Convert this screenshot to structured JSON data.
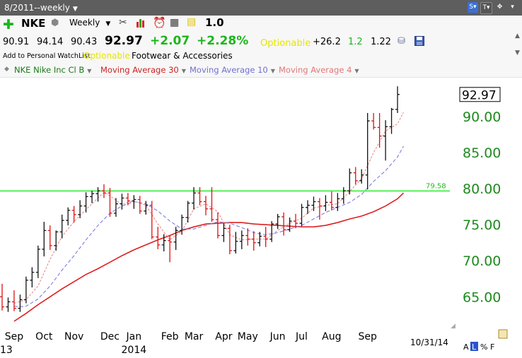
{
  "window": {
    "title": "8/2011--weekly"
  },
  "toolbar": {
    "symbol": "NKE",
    "period": "Weekly",
    "factor": "1.0",
    "open": "90.91",
    "high": "94.14",
    "low": "90.43",
    "last": "92.97",
    "change": "+2.07",
    "change_pct": "+2.28%",
    "optionable": "Optionable",
    "stat1": "+26.2",
    "stat2": "1.2",
    "stat3": "1.22",
    "watchlist_link": "Add to Personal WatchList",
    "optionable_tag": "Optionable",
    "industry": "Footwear & Accessories",
    "colors": {
      "up": "#1db51d",
      "optionable": "#e6e600"
    }
  },
  "legend": [
    {
      "label": "NKE Nike Inc Cl B",
      "color": "#1a7a1a"
    },
    {
      "label": "Moving Average 30",
      "color": "#cc2222"
    },
    {
      "label": "Moving Average 10",
      "color": "#7070d0"
    },
    {
      "label": "Moving Average 4",
      "color": "#e07878"
    }
  ],
  "chart_data": {
    "type": "ohlc",
    "price_label": "92.97",
    "ylim": [
      61.5,
      95.3
    ],
    "y_ticks": [
      "90.00",
      "85.00",
      "80.00",
      "75.00",
      "70.00",
      "65.00"
    ],
    "y_tick_values": [
      90,
      85,
      80,
      75,
      70,
      65
    ],
    "hline": {
      "value": 79.58,
      "label": "79.58",
      "color": "#33ee33"
    },
    "x_month_labels": [
      "Sep",
      "Oct",
      "Nov",
      "Dec",
      "Jan",
      "Feb",
      "Mar",
      "Apr",
      "May",
      "Jun",
      "Jul",
      "Aug",
      "Sep"
    ],
    "x_month_week_index": [
      2,
      7,
      12,
      18,
      22,
      28,
      32,
      37,
      41,
      46,
      50,
      55,
      61
    ],
    "x_year_labels": [
      {
        "text": "13",
        "week_index": 0
      },
      {
        "text": "2014",
        "week_index": 22
      }
    ],
    "date_label": "10/31/14",
    "footer_labels": [
      "A",
      "L",
      "%",
      "F"
    ],
    "bars": [
      [
        64.9,
        66.7,
        63.0,
        63.5
      ],
      [
        63.5,
        64.8,
        62.8,
        64.2
      ],
      [
        64.2,
        65.8,
        62.9,
        63.3
      ],
      [
        63.3,
        65.2,
        62.8,
        64.5
      ],
      [
        64.5,
        67.7,
        64.0,
        67.2
      ],
      [
        67.2,
        69.0,
        66.2,
        68.3
      ],
      [
        68.3,
        72.0,
        67.5,
        71.5
      ],
      [
        71.5,
        75.3,
        70.5,
        74.1
      ],
      [
        74.1,
        74.8,
        71.4,
        72.0
      ],
      [
        72.0,
        74.1,
        71.3,
        73.9
      ],
      [
        73.9,
        76.3,
        73.0,
        75.5
      ],
      [
        75.5,
        77.3,
        74.8,
        76.9
      ],
      [
        76.9,
        77.5,
        75.2,
        76.3
      ],
      [
        76.3,
        78.3,
        75.8,
        77.5
      ],
      [
        77.5,
        79.4,
        76.6,
        78.8
      ],
      [
        78.8,
        79.6,
        77.9,
        79.2
      ],
      [
        79.2,
        80.1,
        78.1,
        79.6
      ],
      [
        79.6,
        80.5,
        78.6,
        79.3
      ],
      [
        79.3,
        80.0,
        76.0,
        76.5
      ],
      [
        76.5,
        78.6,
        76.0,
        77.8
      ],
      [
        77.8,
        79.2,
        77.0,
        78.6
      ],
      [
        78.6,
        79.3,
        77.6,
        78.2
      ],
      [
        78.2,
        79.0,
        77.1,
        78.4
      ],
      [
        78.4,
        78.9,
        76.4,
        76.8
      ],
      [
        76.8,
        78.2,
        76.3,
        77.6
      ],
      [
        77.6,
        78.2,
        72.9,
        73.2
      ],
      [
        73.2,
        74.6,
        71.5,
        72.1
      ],
      [
        72.1,
        73.6,
        71.2,
        72.7
      ],
      [
        72.7,
        73.4,
        69.7,
        72.5
      ],
      [
        72.5,
        74.6,
        71.4,
        74.1
      ],
      [
        74.1,
        76.3,
        73.5,
        75.9
      ],
      [
        75.9,
        78.2,
        75.2,
        77.9
      ],
      [
        77.9,
        80.1,
        77.0,
        79.3
      ],
      [
        79.3,
        80.1,
        77.6,
        78.1
      ],
      [
        78.1,
        78.9,
        76.2,
        77.1
      ],
      [
        77.1,
        80.1,
        75.3,
        75.6
      ],
      [
        75.6,
        76.6,
        73.0,
        73.4
      ],
      [
        73.4,
        75.1,
        72.5,
        74.4
      ],
      [
        74.4,
        74.9,
        70.8,
        71.3
      ],
      [
        71.3,
        73.9,
        70.9,
        72.6
      ],
      [
        72.6,
        74.1,
        71.5,
        73.4
      ],
      [
        73.4,
        74.4,
        72.0,
        72.9
      ],
      [
        72.9,
        74.0,
        71.3,
        72.4
      ],
      [
        72.4,
        73.9,
        71.9,
        73.3
      ],
      [
        73.3,
        74.6,
        71.8,
        72.9
      ],
      [
        72.9,
        75.4,
        72.5,
        75.0
      ],
      [
        75.0,
        76.4,
        74.3,
        76.0
      ],
      [
        76.0,
        76.6,
        73.4,
        74.2
      ],
      [
        74.2,
        75.9,
        73.9,
        75.4
      ],
      [
        75.4,
        76.4,
        74.4,
        75.1
      ],
      [
        75.1,
        77.8,
        74.7,
        77.3
      ],
      [
        77.3,
        78.3,
        76.4,
        77.6
      ],
      [
        77.6,
        78.8,
        76.8,
        78.1
      ],
      [
        78.1,
        78.6,
        75.6,
        77.5
      ],
      [
        77.5,
        79.0,
        76.8,
        78.0
      ],
      [
        78.0,
        79.5,
        76.9,
        77.3
      ],
      [
        77.3,
        79.3,
        76.8,
        78.5
      ],
      [
        78.5,
        80.1,
        77.8,
        79.6
      ],
      [
        79.6,
        82.7,
        79.1,
        82.1
      ],
      [
        82.1,
        82.9,
        80.5,
        81.0
      ],
      [
        81.0,
        82.6,
        80.6,
        81.8
      ],
      [
        81.8,
        90.4,
        79.8,
        89.3
      ],
      [
        89.3,
        90.4,
        88.1,
        88.4
      ],
      [
        88.4,
        90.4,
        85.6,
        87.2
      ],
      [
        87.2,
        89.4,
        83.8,
        88.5
      ],
      [
        88.5,
        91.1,
        87.5,
        90.9
      ],
      [
        90.9,
        94.1,
        90.4,
        92.97
      ]
    ],
    "ma30": [
      [
        2,
        61.5
      ],
      [
        4,
        62.6
      ],
      [
        6,
        63.8
      ],
      [
        8,
        64.9
      ],
      [
        10,
        66.0
      ],
      [
        12,
        67.0
      ],
      [
        14,
        68.0
      ],
      [
        16,
        68.8
      ],
      [
        18,
        69.7
      ],
      [
        20,
        70.6
      ],
      [
        22,
        71.4
      ],
      [
        24,
        72.1
      ],
      [
        26,
        72.8
      ],
      [
        28,
        73.4
      ],
      [
        30,
        74.1
      ],
      [
        32,
        74.6
      ],
      [
        34,
        75.0
      ],
      [
        36,
        75.1
      ],
      [
        38,
        75.2
      ],
      [
        40,
        75.2
      ],
      [
        42,
        75.0
      ],
      [
        44,
        74.9
      ],
      [
        46,
        74.8
      ],
      [
        48,
        74.7
      ],
      [
        50,
        74.6
      ],
      [
        52,
        74.6
      ],
      [
        54,
        74.8
      ],
      [
        56,
        75.2
      ],
      [
        58,
        75.7
      ],
      [
        60,
        76.1
      ],
      [
        62,
        76.7
      ],
      [
        64,
        77.5
      ],
      [
        66,
        78.5
      ],
      [
        67,
        79.3
      ]
    ],
    "ma10": [
      [
        2,
        63.6
      ],
      [
        3,
        63.5
      ],
      [
        4,
        63.6
      ],
      [
        6,
        64.6
      ],
      [
        8,
        66.4
      ],
      [
        10,
        68.6
      ],
      [
        12,
        70.6
      ],
      [
        14,
        72.8
      ],
      [
        16,
        74.8
      ],
      [
        18,
        76.5
      ],
      [
        20,
        77.5
      ],
      [
        22,
        78.1
      ],
      [
        24,
        77.8
      ],
      [
        26,
        76.8
      ],
      [
        28,
        75.4
      ],
      [
        30,
        74.3
      ],
      [
        32,
        74.3
      ],
      [
        34,
        74.8
      ],
      [
        36,
        75.3
      ],
      [
        38,
        75.1
      ],
      [
        40,
        74.5
      ],
      [
        42,
        73.8
      ],
      [
        44,
        73.5
      ],
      [
        46,
        73.8
      ],
      [
        48,
        74.3
      ],
      [
        50,
        74.8
      ],
      [
        52,
        75.7
      ],
      [
        54,
        76.6
      ],
      [
        56,
        77.3
      ],
      [
        58,
        78.0
      ],
      [
        60,
        79.1
      ],
      [
        62,
        80.9
      ],
      [
        64,
        82.4
      ],
      [
        66,
        84.3
      ],
      [
        67,
        85.8
      ]
    ],
    "ma4": [
      [
        2,
        64.0
      ],
      [
        4,
        64.5
      ],
      [
        6,
        66.4
      ],
      [
        8,
        70.1
      ],
      [
        10,
        73.3
      ],
      [
        12,
        75.3
      ],
      [
        14,
        77.0
      ],
      [
        16,
        78.6
      ],
      [
        17,
        79.4
      ],
      [
        18,
        78.9
      ],
      [
        20,
        77.7
      ],
      [
        22,
        78.2
      ],
      [
        24,
        77.6
      ],
      [
        26,
        75.0
      ],
      [
        28,
        72.8
      ],
      [
        30,
        74.0
      ],
      [
        32,
        77.1
      ],
      [
        34,
        77.8
      ],
      [
        36,
        76.7
      ],
      [
        38,
        73.5
      ],
      [
        40,
        72.8
      ],
      [
        42,
        72.9
      ],
      [
        44,
        72.9
      ],
      [
        46,
        74.1
      ],
      [
        48,
        75.1
      ],
      [
        50,
        75.8
      ],
      [
        52,
        77.2
      ],
      [
        54,
        77.6
      ],
      [
        56,
        77.8
      ],
      [
        58,
        79.5
      ],
      [
        60,
        81.3
      ],
      [
        62,
        84.9
      ],
      [
        64,
        87.9
      ],
      [
        66,
        88.9
      ],
      [
        67,
        90.5
      ]
    ]
  }
}
